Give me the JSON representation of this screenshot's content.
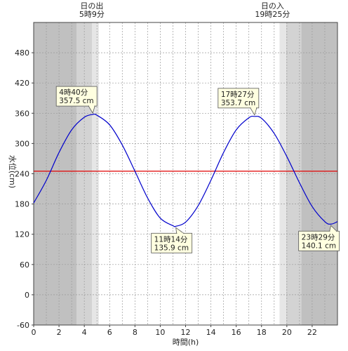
{
  "chart_data": {
    "type": "line",
    "xlabel": "時間(h)",
    "ylabel": "水位(cm)",
    "xlim": [
      0,
      24
    ],
    "ylim": [
      -60,
      540
    ],
    "x_ticks": [
      0,
      2,
      4,
      6,
      8,
      10,
      12,
      14,
      16,
      18,
      20,
      22
    ],
    "y_ticks": [
      -60,
      0,
      60,
      120,
      180,
      240,
      300,
      360,
      420,
      480
    ],
    "grid": true,
    "reference_line": {
      "y": 245,
      "color": "#e00000"
    },
    "sun_labels": {
      "sunrise": {
        "line1": "日の出",
        "line2": "5時9分",
        "hour": 5.15
      },
      "sunset": {
        "line1": "日の入",
        "line2": "19時25分",
        "hour": 19.42
      }
    },
    "shading": [
      {
        "from": 0,
        "to": 3.4,
        "color": "#c0c0c0"
      },
      {
        "from": 3.4,
        "to": 4.6,
        "color": "#d3d3d3"
      },
      {
        "from": 4.6,
        "to": 5.15,
        "color": "#e6e6e6"
      },
      {
        "from": 19.42,
        "to": 19.95,
        "color": "#e6e6e6"
      },
      {
        "from": 19.95,
        "to": 21.15,
        "color": "#d3d3d3"
      },
      {
        "from": 21.15,
        "to": 24,
        "color": "#c0c0c0"
      }
    ],
    "extremes": [
      {
        "hour": 4.667,
        "value": 357.5,
        "time_label": "4時40分",
        "value_label": "357.5 cm",
        "kind": "high"
      },
      {
        "hour": 11.233,
        "value": 135.9,
        "time_label": "11時14分",
        "value_label": "135.9 cm",
        "kind": "low"
      },
      {
        "hour": 17.45,
        "value": 353.7,
        "time_label": "17時27分",
        "value_label": "353.7 cm",
        "kind": "high"
      },
      {
        "hour": 23.483,
        "value": 140.1,
        "time_label": "23時29分",
        "value_label": "140.1 cm",
        "kind": "low"
      }
    ],
    "series": [
      {
        "color": "#0000cc",
        "x": [
          0,
          1,
          2,
          3,
          4,
          4.667,
          5,
          6,
          7,
          8,
          9,
          10,
          11,
          11.233,
          12,
          13,
          14,
          15,
          16,
          17,
          17.45,
          18,
          19,
          20,
          21,
          22,
          23,
          23.483,
          24
        ],
        "y": [
          182,
          227,
          282,
          327,
          352,
          357.5,
          356,
          337,
          297,
          245,
          192,
          152,
          137,
          135.9,
          144,
          177,
          227,
          282,
          327,
          351,
          353.7,
          350,
          320,
          274,
          222,
          175,
          145,
          140.1,
          145
        ]
      }
    ]
  }
}
